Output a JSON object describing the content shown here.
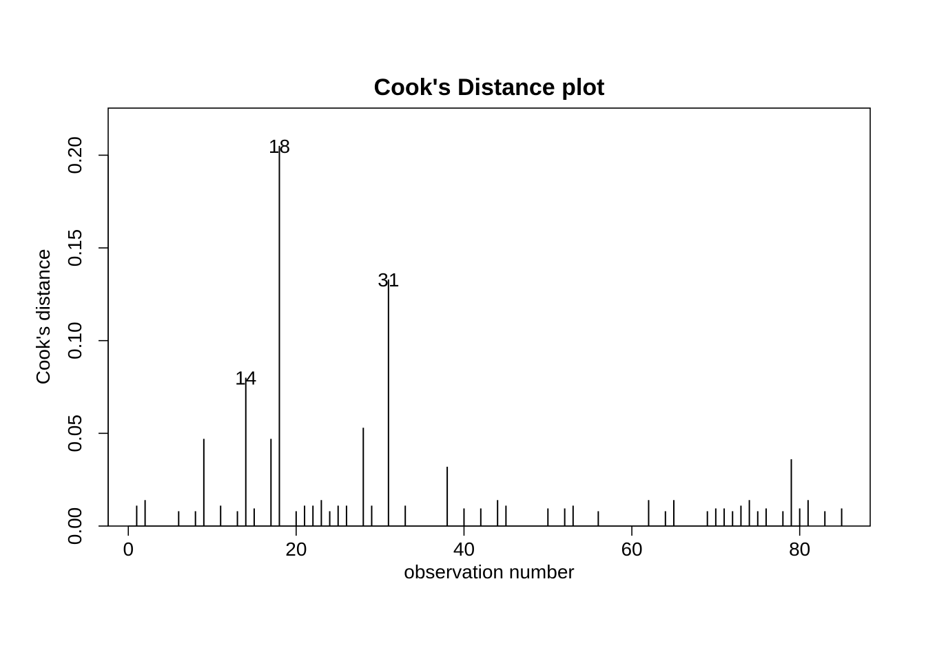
{
  "chart_data": {
    "type": "bar",
    "title": "Cook's Distance plot",
    "xlabel": "observation number",
    "ylabel": "Cook's distance",
    "xlim": [
      -2.4,
      88.4
    ],
    "ylim": [
      0,
      0.2254
    ],
    "x_ticks": [
      0,
      20,
      40,
      60,
      80
    ],
    "x_tick_labels": [
      "0",
      "20",
      "40",
      "60",
      "80"
    ],
    "y_ticks": [
      0.0,
      0.05,
      0.1,
      0.15,
      0.2
    ],
    "y_tick_labels": [
      "0.00",
      "0.05",
      "0.10",
      "0.15",
      "0.20"
    ],
    "grid": false,
    "x": [
      1,
      2,
      6,
      8,
      9,
      11,
      13,
      14,
      15,
      17,
      18,
      20,
      21,
      22,
      23,
      24,
      25,
      26,
      28,
      29,
      31,
      33,
      38,
      40,
      42,
      44,
      45,
      50,
      52,
      53,
      56,
      62,
      64,
      65,
      69,
      70,
      71,
      72,
      73,
      74,
      75,
      76,
      78,
      79,
      80,
      81,
      83,
      85
    ],
    "values": [
      0.011,
      0.014,
      0.008,
      0.008,
      0.047,
      0.011,
      0.008,
      0.08,
      0.0095,
      0.047,
      0.205,
      0.008,
      0.011,
      0.011,
      0.014,
      0.008,
      0.011,
      0.011,
      0.053,
      0.011,
      0.133,
      0.011,
      0.032,
      0.0095,
      0.0095,
      0.014,
      0.011,
      0.0095,
      0.0095,
      0.011,
      0.008,
      0.014,
      0.008,
      0.014,
      0.008,
      0.0095,
      0.0095,
      0.008,
      0.011,
      0.014,
      0.008,
      0.0095,
      0.008,
      0.036,
      0.0095,
      0.014,
      0.008,
      0.0095
    ],
    "annotations": [
      {
        "text": "14",
        "x": 14,
        "y": 0.08
      },
      {
        "text": "18",
        "x": 18,
        "y": 0.205
      },
      {
        "text": "31",
        "x": 31,
        "y": 0.133
      }
    ]
  }
}
